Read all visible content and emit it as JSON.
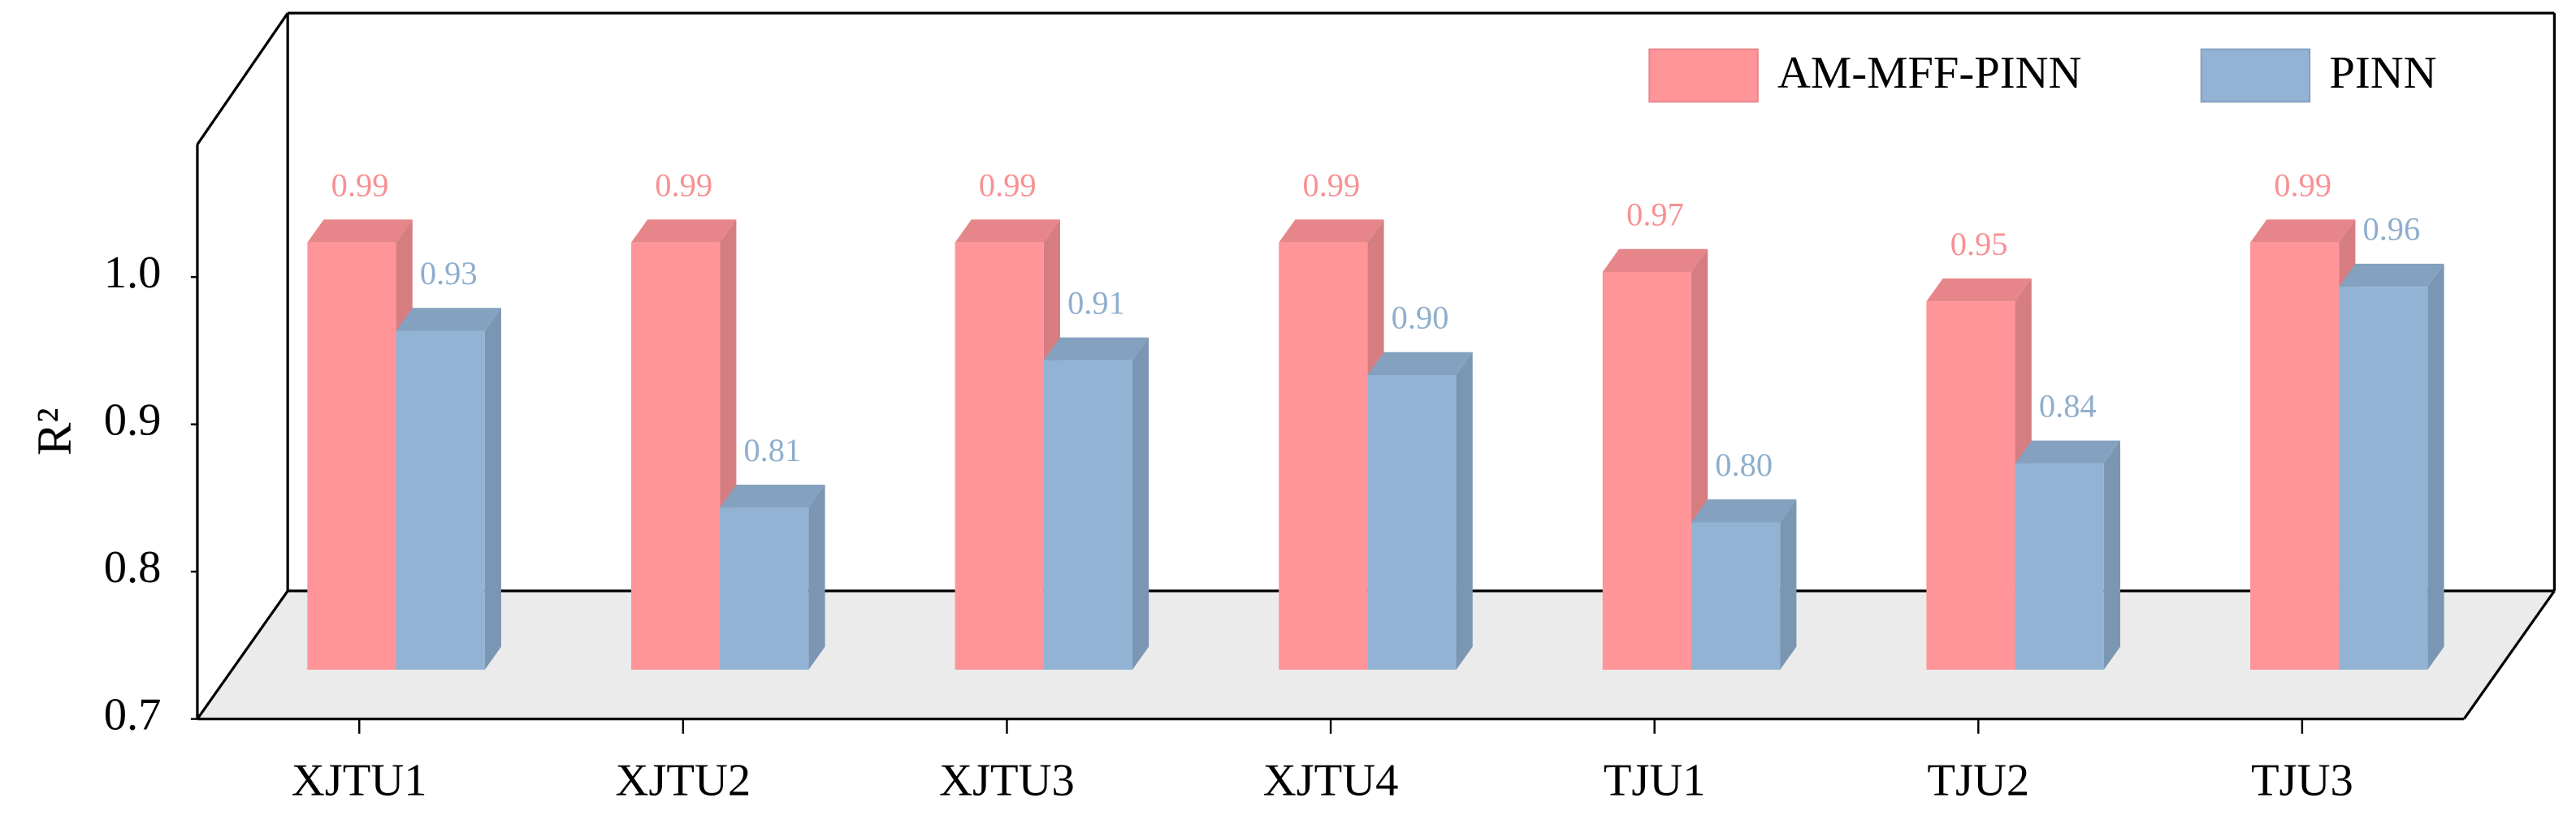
{
  "chart_data": {
    "type": "bar3d",
    "y_label": "R²",
    "categories": [
      "XJTU1",
      "XJTU2",
      "XJTU3",
      "XJTU4",
      "TJU1",
      "TJU2",
      "TJU3"
    ],
    "series": [
      {
        "name": "AM-MFF-PINN",
        "color": "#ff9599",
        "values": [
          0.99,
          0.99,
          0.99,
          0.99,
          0.97,
          0.95,
          0.99
        ]
      },
      {
        "name": "PINN",
        "color": "#93b3d4",
        "values": [
          0.93,
          0.81,
          0.91,
          0.9,
          0.8,
          0.84,
          0.96
        ],
        "value_labels": [
          "0.93",
          "0.81",
          "0.91",
          "0.90",
          "0.80",
          "0.84",
          "0.96"
        ]
      }
    ],
    "ylim": [
      0.7,
      1.09
    ],
    "yticks": [
      0.7,
      0.8,
      0.9,
      {
        "value": 1,
        "label": "1.0"
      }
    ],
    "grid": false,
    "legend": "upper right"
  }
}
